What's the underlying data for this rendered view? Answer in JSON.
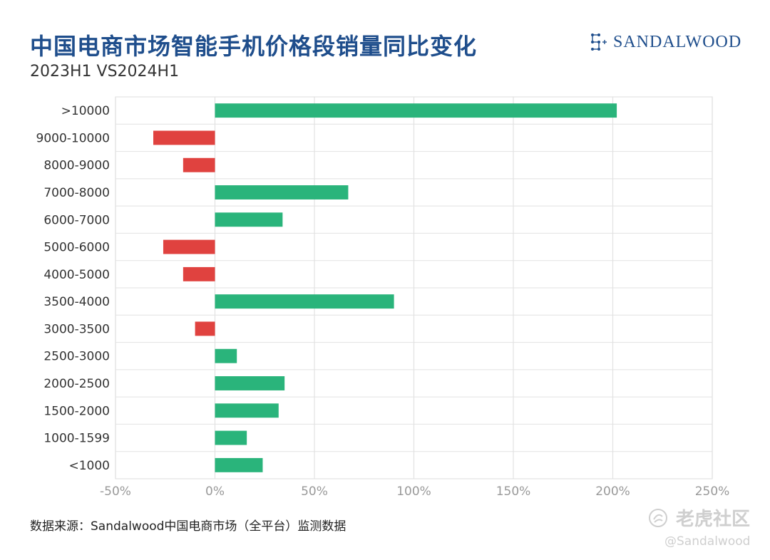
{
  "header": {
    "title": "中国电商市场智能手机价格段销量同比变化",
    "subtitle": "2023H1 VS2024H1",
    "brand": "SANDALWOOD"
  },
  "footer": {
    "source": "数据来源：Sandalwood中国电商市场（全平台）监测数据"
  },
  "watermark": {
    "site": "老虎社区",
    "handle": "@Sandalwood"
  },
  "colors": {
    "positive": "#2ab47b",
    "negative": "#e0423f",
    "title": "#1f4e8c",
    "grid": "#e2e2e2"
  },
  "chart_data": {
    "type": "bar",
    "orientation": "horizontal",
    "categories": [
      ">10000",
      "9000-10000",
      "8000-9000",
      "7000-8000",
      "6000-7000",
      "5000-6000",
      "4000-5000",
      "3500-4000",
      "3000-3500",
      "2500-3000",
      "2000-2500",
      "1500-2000",
      "1000-1599",
      "<1000"
    ],
    "values": [
      202,
      -31,
      -16,
      67,
      34,
      -26,
      -16,
      90,
      -10,
      11,
      35,
      32,
      16,
      24
    ],
    "xlim": [
      -50,
      250
    ],
    "xticks": [
      -50,
      0,
      50,
      100,
      150,
      200,
      250
    ],
    "xtick_labels": [
      "-50%",
      "0%",
      "50%",
      "100%",
      "150%",
      "200%",
      "250%"
    ],
    "unit": "%",
    "grid": true,
    "legend": "none"
  }
}
